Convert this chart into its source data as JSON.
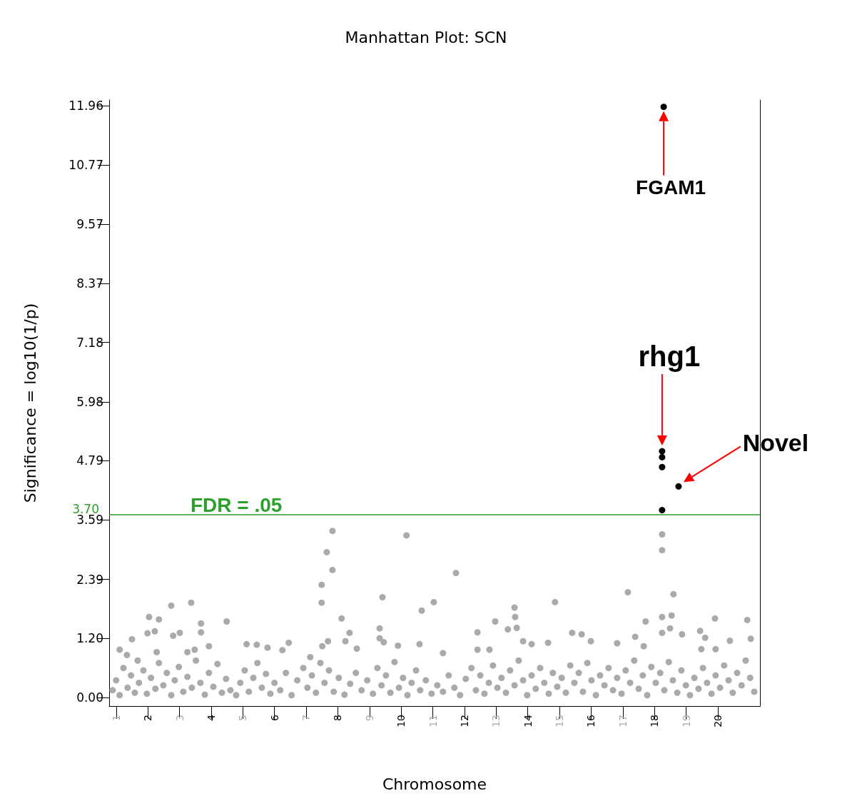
{
  "chart_data": {
    "type": "scatter",
    "title": "Manhattan Plot: SCN",
    "xlabel": "Chromosome",
    "ylabel": "Significance = log10(1/p)",
    "marker": "circle",
    "xlim": [
      0.78,
      21.33
    ],
    "ylim": [
      -0.17,
      12.08
    ],
    "xticks": [
      1,
      2,
      3,
      4,
      5,
      6,
      7,
      8,
      9,
      10,
      11,
      12,
      13,
      14,
      15,
      16,
      17,
      18,
      19,
      20
    ],
    "yticks": [
      {
        "value": 0,
        "label": "0.00"
      },
      {
        "value": 1.2,
        "label": "1.20"
      },
      {
        "value": 2.39,
        "label": "2.39"
      },
      {
        "value": 3.59,
        "label": "3.59"
      },
      {
        "value": 4.79,
        "label": "4.79"
      },
      {
        "value": 5.98,
        "label": "5.98"
      },
      {
        "value": 7.18,
        "label": "7.18"
      },
      {
        "value": 8.37,
        "label": "8.37"
      },
      {
        "value": 9.57,
        "label": "9.57"
      },
      {
        "value": 10.77,
        "label": "10.77"
      },
      {
        "value": 11.96,
        "label": "11.96"
      }
    ],
    "ref_lines": [
      {
        "axis": "y",
        "value": 3.7,
        "label": "FDR = .05",
        "color": "#2ca02c"
      }
    ],
    "annotations": [
      "FGAM1",
      {
        "text": "rhg1",
        "x": 18.24,
        "y": 4.98
      },
      {
        "text": "Novel",
        "x": 18.76,
        "y": 4.27
      },
      "3.70"
    ],
    "series": [
      {
        "color": "#aaaaaa",
        "x": [
          0.89,
          1.0,
          1.11,
          1.23,
          1.36,
          1.47,
          1.59,
          1.72,
          1.86,
          1.97,
          2.1,
          2.24,
          2.35,
          2.49,
          2.6,
          2.74,
          2.85,
          2.98,
          3.12,
          3.25,
          3.39,
          3.52,
          3.66,
          3.8,
          3.93,
          4.07,
          4.2,
          4.34,
          4.47,
          4.61,
          4.79,
          4.92,
          5.06,
          5.19,
          5.33,
          5.46,
          5.6,
          5.73,
          5.87,
          6.0,
          6.18,
          6.36,
          6.54,
          6.72,
          6.91,
          7.04,
          7.18,
          7.31,
          7.45,
          7.58,
          7.72,
          7.87,
          8.03,
          8.21,
          8.39,
          8.57,
          8.75,
          8.93,
          9.11,
          9.25,
          9.38,
          9.52,
          9.66,
          9.79,
          9.93,
          10.06,
          10.2,
          10.33,
          10.47,
          10.6,
          10.78,
          10.96,
          11.14,
          11.32,
          11.5,
          11.68,
          11.86,
          12.04,
          12.22,
          12.36,
          12.5,
          12.63,
          12.77,
          12.9,
          13.04,
          13.17,
          13.31,
          13.44,
          13.58,
          13.71,
          13.85,
          13.98,
          14.12,
          14.25,
          14.39,
          14.52,
          14.66,
          14.79,
          14.93,
          15.07,
          15.2,
          15.34,
          15.47,
          15.61,
          15.74,
          15.88,
          16.01,
          16.15,
          16.28,
          16.42,
          16.55,
          16.69,
          16.82,
          16.96,
          17.09,
          17.23,
          17.36,
          17.5,
          17.63,
          17.77,
          17.9,
          18.04,
          18.18,
          18.31,
          18.45,
          18.58,
          18.72,
          18.85,
          18.99,
          19.12,
          19.26,
          19.39,
          19.53,
          19.66,
          19.8,
          19.93,
          20.07,
          20.2,
          20.34,
          20.47,
          20.61,
          20.75,
          20.88,
          21.02,
          21.15,
          7.83,
          7.65,
          7.83,
          7.49,
          7.49,
          10.17,
          9.41,
          10.65,
          2.74,
          3.37,
          2.04,
          2.35,
          4.49,
          3.68,
          3.68,
          1.99,
          2.22,
          2.8,
          3.01,
          1.5,
          8.12,
          8.37,
          9.32,
          9.32,
          9.45,
          9.9,
          10.58,
          8.24,
          7.69,
          7.51,
          5.12,
          5.44,
          5.78,
          6.45,
          6.25,
          3.93,
          3.48,
          3.25,
          1.11,
          1.34,
          1.68,
          8.6,
          7.13,
          2.28,
          18.24,
          18.24,
          11.73,
          17.16,
          18.6,
          14.86,
          11.03,
          13.58,
          13.6,
          12.97,
          13.65,
          13.37,
          12.41,
          17.72,
          18.24,
          18.54,
          19.91,
          20.93,
          18.24,
          18.49,
          18.87,
          19.44,
          19.6,
          21.04,
          15.4,
          15.7,
          15.99,
          17.39,
          16.82,
          20.38,
          13.85,
          14.12,
          14.64,
          12.41,
          12.79,
          11.32,
          19.93,
          19.48,
          17.66
        ],
        "values": [
          0.15,
          0.35,
          0.05,
          0.6,
          0.2,
          0.45,
          0.1,
          0.3,
          0.55,
          0.08,
          0.4,
          0.18,
          0.7,
          0.25,
          0.5,
          0.05,
          0.35,
          0.62,
          0.12,
          0.42,
          0.2,
          0.75,
          0.3,
          0.06,
          0.5,
          0.22,
          0.68,
          0.1,
          0.38,
          0.15,
          0.05,
          0.3,
          0.55,
          0.12,
          0.4,
          0.7,
          0.2,
          0.48,
          0.08,
          0.3,
          0.15,
          0.5,
          0.05,
          0.35,
          0.6,
          0.2,
          0.45,
          0.1,
          0.7,
          0.3,
          0.55,
          0.12,
          0.4,
          0.06,
          0.28,
          0.5,
          0.15,
          0.35,
          0.08,
          0.6,
          0.25,
          0.45,
          0.1,
          0.72,
          0.2,
          0.4,
          0.05,
          0.3,
          0.55,
          0.15,
          0.35,
          0.08,
          0.25,
          0.12,
          0.45,
          0.2,
          0.05,
          0.38,
          0.6,
          0.15,
          0.45,
          0.08,
          0.3,
          0.65,
          0.2,
          0.4,
          0.1,
          0.55,
          0.25,
          0.75,
          0.35,
          0.05,
          0.45,
          0.18,
          0.6,
          0.3,
          0.08,
          0.5,
          0.22,
          0.4,
          0.1,
          0.65,
          0.3,
          0.5,
          0.12,
          0.7,
          0.35,
          0.05,
          0.45,
          0.25,
          0.6,
          0.15,
          0.4,
          0.08,
          0.55,
          0.3,
          0.75,
          0.18,
          0.45,
          0.05,
          0.62,
          0.3,
          0.5,
          0.15,
          0.72,
          0.35,
          0.1,
          0.55,
          0.25,
          0.05,
          0.4,
          0.18,
          0.6,
          0.3,
          0.08,
          0.45,
          0.2,
          0.65,
          0.35,
          0.1,
          0.5,
          0.25,
          0.75,
          0.4,
          0.12,
          3.37,
          2.94,
          2.58,
          2.28,
          1.92,
          3.28,
          2.03,
          1.76,
          1.86,
          1.92,
          1.63,
          1.58,
          1.54,
          1.5,
          1.32,
          1.3,
          1.34,
          1.25,
          1.31,
          1.18,
          1.6,
          1.31,
          1.4,
          1.2,
          1.12,
          1.05,
          1.08,
          1.14,
          1.14,
          1.04,
          1.08,
          1.07,
          1.01,
          1.11,
          0.96,
          1.04,
          0.97,
          0.92,
          0.97,
          0.86,
          0.75,
          0.99,
          0.82,
          0.92,
          3.3,
          2.98,
          2.52,
          2.13,
          2.09,
          1.93,
          1.93,
          1.82,
          1.63,
          1.54,
          1.41,
          1.38,
          1.32,
          1.54,
          1.63,
          1.66,
          1.6,
          1.57,
          1.31,
          1.4,
          1.28,
          1.35,
          1.21,
          1.19,
          1.31,
          1.28,
          1.14,
          1.23,
          1.1,
          1.15,
          1.14,
          1.08,
          1.11,
          0.97,
          0.97,
          0.9,
          0.98,
          0.98,
          1.04
        ]
      },
      {
        "color": "#000000",
        "x": [
          18.29,
          18.24,
          18.24,
          18.24,
          18.76,
          18.24
        ],
        "values": [
          11.94,
          4.98,
          4.86,
          4.66,
          4.27,
          3.79
        ]
      }
    ]
  }
}
